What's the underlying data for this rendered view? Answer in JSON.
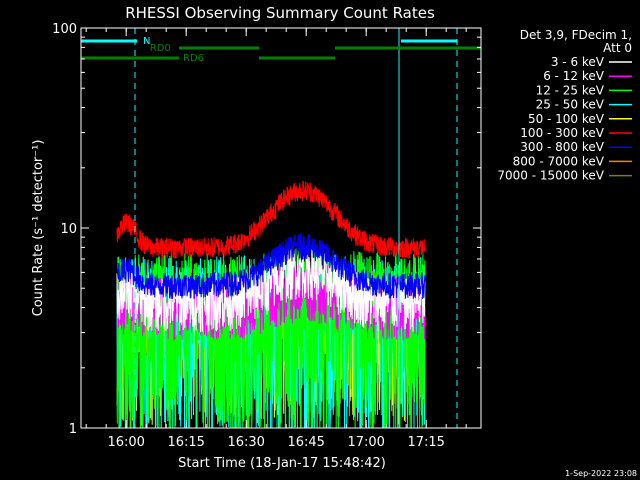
{
  "chart_data": {
    "type": "line",
    "title": "RHESSI Observing Summary Count Rates",
    "xlabel": "Start Time (18-Jan-17 15:48:42)",
    "ylabel": "Count Rate (s⁻¹ detector⁻¹)",
    "yscale": "log",
    "ylim": [
      1,
      100
    ],
    "xlim_minutes": [
      0,
      100
    ],
    "yticks": [
      {
        "label": "1",
        "value": 1
      },
      {
        "label": "10",
        "value": 10
      },
      {
        "label": "100",
        "value": 100
      }
    ],
    "xticks": [
      {
        "label": "16:00",
        "minutes": 11.3
      },
      {
        "label": "16:15",
        "minutes": 26.3
      },
      {
        "label": "16:30",
        "minutes": 41.3
      },
      {
        "label": "16:45",
        "minutes": 56.3
      },
      {
        "label": "17:00",
        "minutes": 71.3
      },
      {
        "label": "17:15",
        "minutes": 86.3
      }
    ],
    "legend_title": [
      "Det 3,9, FDecim 1,",
      "Att 0"
    ],
    "series": [
      {
        "name": "3 - 6 keV",
        "color": "#ffffff",
        "base": 4.3,
        "flare": 2.0,
        "noise": 0.3
      },
      {
        "name": "6 - 12 keV",
        "color": "#ff00ff",
        "base": 4.2,
        "flare": 1.0,
        "noise": 0.35
      },
      {
        "name": "12 - 25 keV",
        "color": "#00ff00",
        "base": 4.0,
        "flare": 0.2,
        "noise": 0.9
      },
      {
        "name": "25 - 50 keV",
        "color": "#00ffff",
        "base": 3.9,
        "flare": 0.2,
        "noise": 0.85
      },
      {
        "name": "50 - 100 keV",
        "color": "#ffff00",
        "base": 3.6,
        "flare": 0.1,
        "noise": 0.7
      },
      {
        "name": "100 - 300 keV",
        "color": "#ff0000",
        "base": 8.0,
        "flare": 7.5,
        "noise": 0.12
      },
      {
        "name": "300 - 800 keV",
        "color": "#0000ff",
        "base": 5.2,
        "flare": 3.0,
        "noise": 0.15
      },
      {
        "name": "800 - 7000 keV",
        "color": "#ff8000",
        "base": 3.3,
        "flare": 0.5,
        "noise": 0.35
      },
      {
        "name": "7000 - 15000 keV",
        "color": "#808000",
        "base": 3.1,
        "flare": 0.3,
        "noise": 0.45
      }
    ],
    "data_range_minutes": [
      9,
      86
    ],
    "flare_peaks": [
      {
        "center_minutes": 11.5,
        "width": 3,
        "amp": 0.35
      },
      {
        "center_minutes": 55.5,
        "width": 10,
        "amp": 1.0
      }
    ],
    "annotations": {
      "night_line": {
        "label": "N",
        "color": "#00ffff"
      },
      "rd0_line": {
        "label": "RD0",
        "color": "#008000"
      },
      "rd6_line": {
        "label": "RD6",
        "color": "#008000"
      }
    },
    "saa_markers": {
      "solid_minutes": [
        79.5
      ],
      "dashed_minutes": [
        13.5,
        94
      ]
    }
  },
  "footer": {
    "timestamp": "1-Sep-2022 23:08"
  }
}
